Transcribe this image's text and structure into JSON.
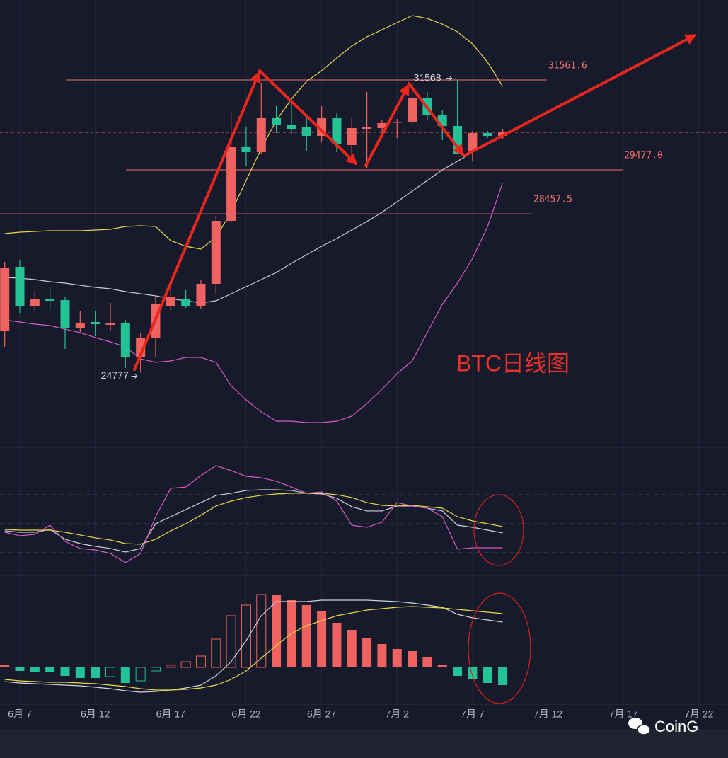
{
  "chart_data": [
    {
      "type": "candlestick",
      "categories": [
        null,
        "6月 7",
        null,
        null,
        null,
        null,
        "6月 12",
        null,
        null,
        null,
        null,
        "6月 17",
        null,
        null,
        null,
        null,
        "6月 22",
        null,
        null,
        null,
        null,
        "6月 27",
        null,
        null,
        null,
        null,
        "7月 2",
        null,
        null,
        null,
        null,
        "7月 7",
        null,
        null,
        null,
        null,
        "7月 12",
        null,
        null,
        null,
        null,
        "7月 17",
        null,
        null,
        null,
        null,
        "7月 22",
        null
      ],
      "open": [
        25736,
        27229,
        26327,
        26491,
        26458,
        25818,
        25950,
        25884,
        25933,
        25129,
        25589,
        26327,
        26491,
        26327,
        26836,
        28296,
        30003,
        29888,
        30676,
        30528,
        30462,
        30265,
        30676,
        30052,
        30429,
        30446,
        30577,
        30593,
        31151,
        30758,
        30495,
        29904,
        30331,
        30265,
        null,
        null,
        null,
        null,
        null,
        null,
        null,
        null,
        null,
        null,
        null,
        null,
        null,
        null
      ],
      "high": [
        27344,
        27377,
        26688,
        26770,
        26524,
        26196,
        26196,
        26393,
        25999,
        25703,
        26524,
        26770,
        26688,
        26934,
        28411,
        30823,
        30462,
        31496,
        30954,
        31037,
        30708,
        30954,
        30790,
        30708,
        31283,
        30626,
        30659,
        31496,
        31283,
        30872,
        31568,
        30380,
        30380,
        30429,
        null,
        null,
        null,
        null,
        null,
        null,
        null,
        null,
        null,
        null,
        null,
        null,
        null,
        null
      ],
      "low": [
        25375,
        26163,
        26196,
        26229,
        25326,
        25703,
        25621,
        25736,
        24883,
        24777,
        25129,
        26196,
        26278,
        26245,
        26606,
        28247,
        29560,
        29839,
        30331,
        30298,
        29921,
        30134,
        29888,
        29806,
        29527,
        30216,
        30216,
        30528,
        30626,
        30167,
        29839,
        29691,
        30216,
        30200,
        null,
        null,
        null,
        null,
        null,
        null,
        null,
        null,
        null,
        null,
        null,
        null,
        null,
        null
      ],
      "close": [
        27213,
        26327,
        26491,
        26442,
        25818,
        25917,
        25900,
        25933,
        25129,
        25589,
        26360,
        26524,
        26327,
        26836,
        28296,
        30003,
        29888,
        30676,
        30512,
        30429,
        30265,
        30676,
        30085,
        30446,
        30462,
        30561,
        30593,
        31151,
        30741,
        30495,
        29855,
        30331,
        30265,
        30347,
        null,
        null,
        null,
        null,
        null,
        null,
        null,
        null,
        null,
        null,
        null,
        null,
        null,
        null
      ],
      "up_color": "#f0625f",
      "down_color": "#21c397",
      "series": [
        {
          "color": "#e8d84a",
          "values": [
            28001,
            28034,
            28050,
            28066,
            28066,
            28066,
            28083,
            28099,
            28165,
            28181,
            28165,
            27837,
            27705,
            27640,
            27919,
            28493,
            29231,
            29970,
            30626,
            31119,
            31529,
            31775,
            32070,
            32349,
            32563,
            32727,
            32891,
            33055,
            32989,
            32858,
            32678,
            32399,
            31972,
            31414,
            null,
            null,
            null,
            null,
            null,
            null,
            null,
            null,
            null,
            null,
            null,
            null,
            null,
            null
          ]
        },
        {
          "color": "#c9ccd6",
          "values": [
            26983,
            26967,
            26934,
            26885,
            26852,
            26803,
            26754,
            26721,
            26655,
            26606,
            26557,
            26491,
            26442,
            26393,
            26442,
            26606,
            26770,
            26934,
            27098,
            27311,
            27508,
            27705,
            27886,
            28083,
            28280,
            28493,
            28739,
            28985,
            29231,
            29478,
            29675,
            29888,
            30101,
            30298,
            null,
            null,
            null,
            null,
            null,
            null,
            null,
            null,
            null,
            null,
            null,
            null,
            null,
            null
          ]
        },
        {
          "color": "#d75cc1",
          "values": [
            25999,
            25950,
            25900,
            25867,
            25785,
            25703,
            25589,
            25490,
            25375,
            25096,
            25014,
            25047,
            25129,
            25129,
            25014,
            24473,
            24144,
            23865,
            23652,
            23652,
            23619,
            23619,
            23652,
            23767,
            24062,
            24390,
            24752,
            25047,
            25703,
            26360,
            26852,
            27426,
            28165,
            29182,
            null,
            null,
            null,
            null,
            null,
            null,
            null,
            null,
            null,
            null,
            null,
            null,
            null,
            null
          ]
        }
      ],
      "levels": [
        31561.6,
        {
          "value": 29477,
          "label": "29477.0"
        },
        28457.5
      ],
      "level_color": "#f07070",
      "ylim": [
        23045,
        33416
      ],
      "annotation": "BTC日线图"
    },
    {
      "type": "line",
      "series": [
        {
          "color": "#d0d3dc",
          "values": [
            42.7,
            41.2,
            41.2,
            44.1,
            33.9,
            29.5,
            26.6,
            24.4,
            20.7,
            24.4,
            50,
            57.3,
            64.6,
            71.9,
            79.3,
            81.5,
            84.4,
            85.1,
            85.1,
            84.4,
            81.5,
            80.8,
            76.3,
            67.6,
            63.2,
            63.2,
            68.3,
            68.3,
            66.1,
            63.2,
            48.5,
            46.3,
            43.4,
            40.5,
            null,
            null,
            null,
            null,
            null,
            null,
            null,
            null,
            null,
            null,
            null,
            null,
            null,
            null
          ]
        },
        {
          "color": "#e8d84a",
          "values": [
            44.1,
            43.4,
            43.4,
            43.4,
            41.2,
            38.3,
            35.4,
            33.2,
            29.5,
            28.8,
            33.9,
            42.7,
            50,
            58.8,
            68.3,
            73.4,
            77.1,
            79.3,
            80.8,
            81.5,
            81.5,
            81.5,
            80,
            77.1,
            71.9,
            69,
            68.3,
            69,
            67.6,
            66.1,
            57.3,
            52.9,
            50,
            47.1,
            null,
            null,
            null,
            null,
            null,
            null,
            null,
            null,
            null,
            null,
            null,
            null,
            null,
            null
          ]
        },
        {
          "color": "#d75cc1",
          "values": [
            41.2,
            37.6,
            39,
            48.5,
            31.7,
            24.4,
            22.9,
            19.3,
            9.8,
            19.3,
            57.3,
            86.6,
            88,
            99.7,
            110,
            104.9,
            99,
            97.6,
            93.9,
            88,
            81.5,
            82.9,
            73.4,
            48.5,
            46.3,
            51.5,
            71.9,
            68.3,
            66.1,
            57.3,
            23.7,
            25.1,
            25.1,
            25.1,
            null,
            null,
            null,
            null,
            null,
            null,
            null,
            null,
            null,
            null,
            null,
            null,
            null,
            null
          ]
        }
      ],
      "ylim": [
        -2.7,
        129
      ],
      "yticks": [
        20,
        50,
        80
      ],
      "grid": true
    },
    {
      "type": "macd",
      "values": [
        30,
        -50,
        -60,
        -60,
        -120,
        -150,
        -150,
        -130,
        -220,
        -190,
        -50,
        30,
        80,
        160,
        400,
        730,
        880,
        1030,
        1030,
        950,
        880,
        800,
        630,
        530,
        410,
        330,
        260,
        230,
        150,
        30,
        -120,
        -160,
        -220,
        -250,
        null,
        null,
        null,
        null,
        null,
        null,
        null,
        null,
        null,
        null,
        null,
        null,
        null,
        null
      ],
      "up_color": "#f0625f",
      "down_color": "#21c397",
      "series": [
        {
          "color": "#d0d3dc",
          "values": [
            -200,
            -220,
            -230,
            -240,
            -250,
            -260,
            -280,
            -300,
            -330,
            -350,
            -340,
            -320,
            -290,
            -250,
            -120,
            80,
            380,
            730,
            930,
            930,
            930,
            950,
            950,
            950,
            950,
            940,
            930,
            910,
            880,
            850,
            750,
            700,
            670,
            640,
            null,
            null,
            null,
            null,
            null,
            null,
            null,
            null,
            null,
            null,
            null,
            null,
            null,
            null
          ]
        },
        {
          "color": "#e8d84a",
          "values": [
            -170,
            -190,
            -200,
            -210,
            -210,
            -220,
            -230,
            -250,
            -270,
            -300,
            -320,
            -320,
            -310,
            -290,
            -250,
            -170,
            -50,
            130,
            310,
            480,
            590,
            660,
            730,
            770,
            810,
            830,
            850,
            860,
            850,
            840,
            820,
            800,
            780,
            760,
            null,
            null,
            null,
            null,
            null,
            null,
            null,
            null,
            null,
            null,
            null,
            null,
            null,
            null
          ]
        }
      ],
      "ylim": [
        -520,
        1280
      ]
    }
  ],
  "watermark": "CoinG"
}
